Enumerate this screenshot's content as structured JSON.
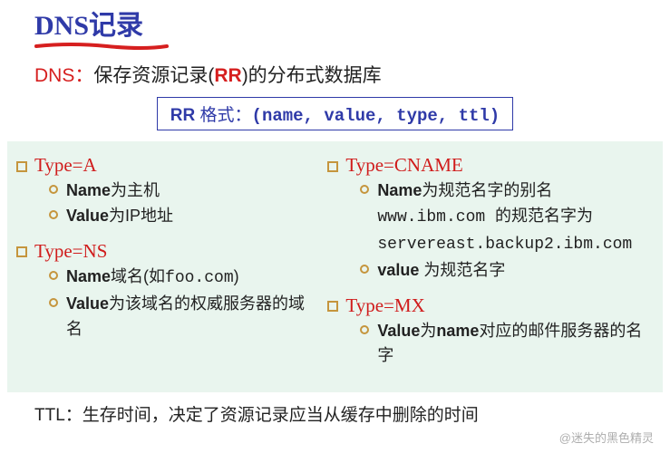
{
  "colors": {
    "title": "#2f3aa8",
    "underline": "#d61f1f",
    "subtitle_label": "#d61f1f",
    "subtitle_text": "#222222",
    "rr_highlight": "#d61f1f",
    "format_border": "#2f3aa8",
    "format_text": "#2f3aa8",
    "panel_bg": "#e9f5ee",
    "type_head": "#d01c1c",
    "sq_bullet": "#c5953d",
    "circ_bullet": "#c5953d",
    "body_text": "#222222",
    "footer_text": "#222222",
    "watermark": "#6b6b6b"
  },
  "title": {
    "prefix": "DNS",
    "rest": "记录"
  },
  "subtitle": {
    "label": "DNS：",
    "pre": "保存资源记录(",
    "rr": "RR",
    "post": ")的分布式数据库"
  },
  "format": {
    "lead_bold": "RR ",
    "lead_rest": "格式：",
    "tuple": "(name, value, type, ttl)"
  },
  "left": [
    {
      "head": "Type=A",
      "items": [
        {
          "bold": "Name",
          "rest": "为主机"
        },
        {
          "bold": "Value",
          "rest": "为IP地址"
        }
      ]
    },
    {
      "head": "Type=NS",
      "items": [
        {
          "bold": "Name",
          "rest": "域名(如",
          "code": "foo.com",
          "rest2": ")"
        },
        {
          "bold": "Value",
          "rest": "为该域名的权威服务器的域名"
        }
      ]
    }
  ],
  "right": [
    {
      "head": "Type=CNAME",
      "items": [
        {
          "bold": "Name",
          "rest": "为规范名字的别名"
        },
        {
          "plain1": "www.ibm.com ",
          "plain2": "的规范名字为"
        },
        {
          "plain1": "servereast.backup2.ibm.com"
        },
        {
          "bold": "value ",
          "rest": "为规范名字"
        }
      ]
    },
    {
      "head": "Type=MX",
      "items": [
        {
          "bold": "Value",
          "rest": "为",
          "bold2": "name",
          "rest2": "对应的邮件服务器的名字"
        }
      ]
    }
  ],
  "footer": {
    "label": "TTL：",
    "text": "生存时间，决定了资源记录应当从缓存中删除的时间"
  },
  "watermark": "@迷失的黑色精灵"
}
